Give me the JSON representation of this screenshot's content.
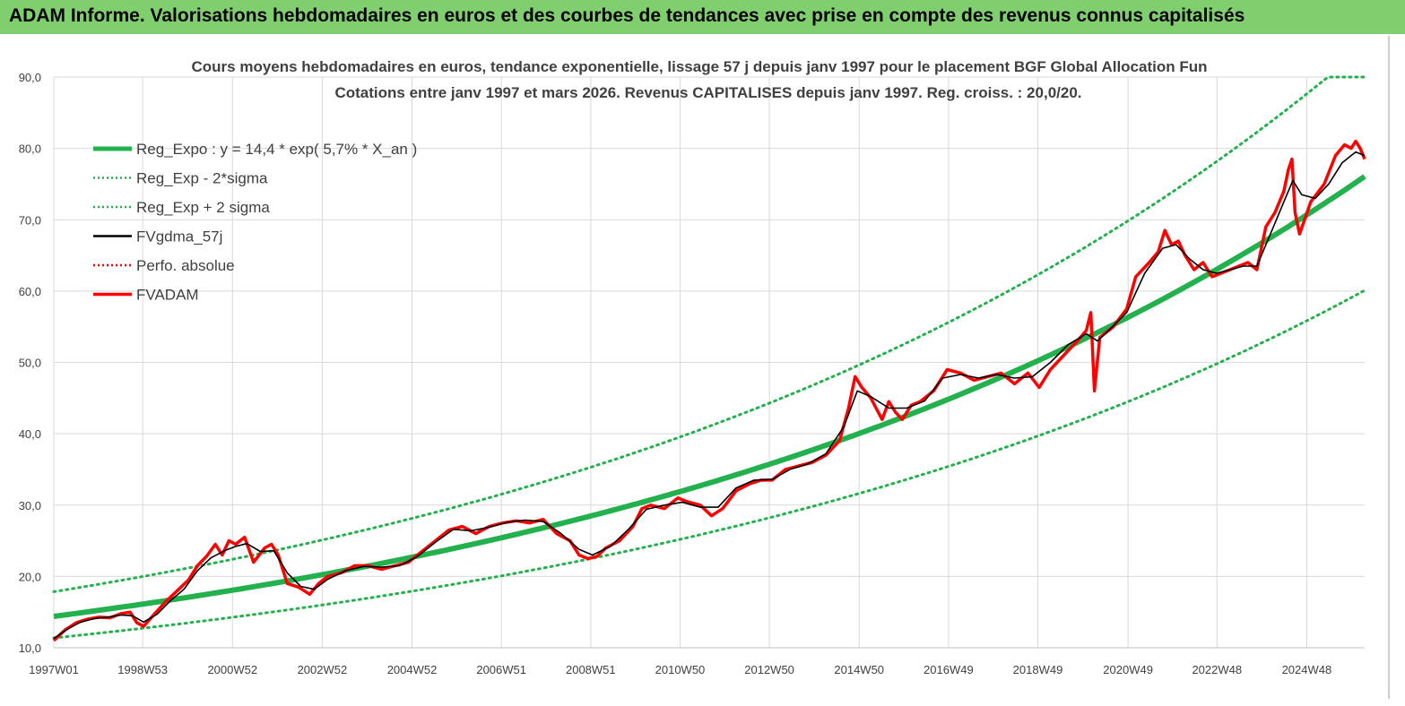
{
  "header": {
    "title": "ADAM Informe. Valorisations hebdomadaires en euros et des courbes de tendances avec prise en compte des revenus connus capitalisés"
  },
  "colors": {
    "header_bg": "#7fcf6f",
    "reg_green": "#22b14c",
    "series_red": "#ff0000",
    "series_black": "#000000",
    "grid": "#d9d9d9"
  },
  "chart_data": {
    "type": "line",
    "title": "Cours moyens hebdomadaires en euros, tendance exponentielle, lissage 57 j depuis janv 1997  pour le placement BGF Global Allocation Fun",
    "subtitle": "Cotations entre janv 1997 et mars 2026. Revenus CAPITALISES  depuis janv 1997. Reg. croiss. : 20,0/20.",
    "ylim": [
      10,
      90
    ],
    "yticks": [
      "10,0",
      "20,0",
      "30,0",
      "40,0",
      "50,0",
      "60,0",
      "70,0",
      "80,0",
      "90,0"
    ],
    "xlim": [
      1997.0,
      2026.2
    ],
    "xticks": [
      {
        "label": "1997W01",
        "x": 1997.0
      },
      {
        "label": "1998W53",
        "x": 1998.98
      },
      {
        "label": "2000W52",
        "x": 2000.98
      },
      {
        "label": "2002W52",
        "x": 2002.98
      },
      {
        "label": "2004W52",
        "x": 2004.98
      },
      {
        "label": "2006W51",
        "x": 2006.97
      },
      {
        "label": "2008W51",
        "x": 2008.96
      },
      {
        "label": "2010W50",
        "x": 2010.95
      },
      {
        "label": "2012W50",
        "x": 2012.94
      },
      {
        "label": "2014W50",
        "x": 2014.94
      },
      {
        "label": "2016W49",
        "x": 2016.93
      },
      {
        "label": "2018W49",
        "x": 2018.92
      },
      {
        "label": "2020W49",
        "x": 2020.93
      },
      {
        "label": "2022W48",
        "x": 2022.91
      },
      {
        "label": "2024W48",
        "x": 2024.91
      }
    ],
    "legend_position": "top-left",
    "legend": [
      {
        "label": "Reg_Expo : y = 14,4 * exp( 5,7% *  X_an )",
        "color": "#22b14c",
        "style": "solid-thick"
      },
      {
        "label": "Reg_Exp - 2*sigma",
        "color": "#22b14c",
        "style": "dotted"
      },
      {
        "label": "Reg_Exp + 2 sigma",
        "color": "#22b14c",
        "style": "dotted"
      },
      {
        "label": "FVgdma_57j",
        "color": "#000000",
        "style": "solid-thin"
      },
      {
        "label": "Perfo. absolue",
        "color": "#ff0000",
        "style": "dotted"
      },
      {
        "label": "FVADAM",
        "color": "#ff0000",
        "style": "solid"
      }
    ],
    "regression": {
      "a": 14.4,
      "rate": 0.057,
      "x0": 1997.0,
      "lower_factor": 0.79,
      "upper_factor": 1.24,
      "cap": 90
    },
    "series": [
      {
        "name": "FVADAM",
        "x": [
          1997.0,
          1997.25,
          1997.5,
          1997.75,
          1998.0,
          1998.25,
          1998.5,
          1998.7,
          1998.85,
          1999.0,
          1999.25,
          1999.5,
          1999.75,
          2000.0,
          2000.2,
          2000.4,
          2000.6,
          2000.75,
          2000.9,
          2001.05,
          2001.25,
          2001.45,
          2001.7,
          2001.85,
          2002.0,
          2002.2,
          2002.45,
          2002.7,
          2002.9,
          2003.1,
          2003.4,
          2003.7,
          2004.0,
          2004.3,
          2004.6,
          2004.9,
          2005.2,
          2005.5,
          2005.8,
          2006.1,
          2006.4,
          2006.7,
          2007.0,
          2007.3,
          2007.6,
          2007.9,
          2008.2,
          2008.5,
          2008.7,
          2008.9,
          2009.1,
          2009.3,
          2009.6,
          2009.9,
          2010.1,
          2010.3,
          2010.6,
          2010.9,
          2011.1,
          2011.4,
          2011.65,
          2011.9,
          2012.2,
          2012.5,
          2012.75,
          2013.0,
          2013.3,
          2013.6,
          2013.9,
          2014.2,
          2014.5,
          2014.7,
          2014.85,
          2015.0,
          2015.2,
          2015.45,
          2015.6,
          2015.75,
          2015.9,
          2016.1,
          2016.3,
          2016.6,
          2016.9,
          2017.2,
          2017.5,
          2017.8,
          2018.1,
          2018.4,
          2018.7,
          2018.95,
          2019.2,
          2019.5,
          2019.8,
          2020.0,
          2020.1,
          2020.18,
          2020.3,
          2020.6,
          2020.9,
          2021.1,
          2021.4,
          2021.6,
          2021.75,
          2021.9,
          2022.05,
          2022.2,
          2022.4,
          2022.6,
          2022.8,
          2023.0,
          2023.2,
          2023.4,
          2023.6,
          2023.8,
          2024.0,
          2024.2,
          2024.4,
          2024.5,
          2024.58,
          2024.65,
          2024.75,
          2025.0,
          2025.3,
          2025.55,
          2025.75,
          2025.9,
          2026.0,
          2026.1,
          2026.2
        ],
        "values": [
          11.0,
          12.5,
          13.5,
          14.0,
          14.3,
          14.2,
          14.8,
          15.0,
          13.5,
          13.0,
          14.8,
          16.5,
          18.0,
          19.5,
          21.5,
          22.8,
          24.5,
          23.0,
          25.0,
          24.5,
          25.5,
          22.0,
          24.0,
          24.5,
          23.0,
          19.0,
          18.5,
          17.5,
          19.0,
          20.0,
          20.5,
          21.5,
          21.5,
          21.0,
          21.5,
          22.0,
          23.5,
          25.0,
          26.5,
          27.0,
          26.0,
          27.0,
          27.5,
          27.8,
          27.5,
          28.0,
          26.0,
          25.0,
          23.0,
          22.5,
          22.8,
          24.0,
          25.0,
          27.0,
          29.5,
          30.0,
          29.5,
          31.0,
          30.5,
          30.0,
          28.5,
          29.5,
          32.0,
          33.0,
          33.5,
          33.5,
          35.0,
          35.5,
          36.0,
          37.0,
          39.0,
          43.5,
          48.0,
          46.5,
          45.0,
          42.0,
          44.5,
          43.0,
          42.0,
          44.0,
          44.5,
          46.0,
          49.0,
          48.5,
          47.5,
          48.0,
          48.5,
          47.0,
          48.5,
          46.5,
          49.0,
          51.0,
          53.0,
          54.5,
          57.0,
          46.0,
          53.5,
          55.0,
          57.5,
          62.0,
          64.0,
          65.5,
          68.5,
          66.5,
          67.0,
          65.0,
          63.0,
          64.0,
          62.0,
          62.5,
          63.0,
          63.5,
          64.0,
          63.0,
          69.0,
          71.0,
          74.0,
          77.0,
          78.5,
          71.0,
          68.0,
          72.5,
          75.0,
          79.0,
          80.5,
          80.0,
          81.0,
          80.0,
          78.5
        ]
      },
      {
        "name": "FVgdma_57j",
        "x": [
          1997.0,
          1997.3,
          1997.6,
          1997.9,
          1998.2,
          1998.5,
          1998.75,
          1999.0,
          1999.3,
          1999.6,
          1999.9,
          2000.2,
          2000.5,
          2000.8,
          2001.05,
          2001.3,
          2001.6,
          2001.9,
          2002.2,
          2002.5,
          2002.8,
          2003.1,
          2003.5,
          2003.9,
          2004.3,
          2004.7,
          2005.1,
          2005.5,
          2005.9,
          2006.3,
          2006.7,
          2007.1,
          2007.5,
          2007.9,
          2008.3,
          2008.7,
          2009.0,
          2009.4,
          2009.8,
          2010.2,
          2010.6,
          2011.0,
          2011.4,
          2011.8,
          2012.2,
          2012.6,
          2013.0,
          2013.4,
          2013.8,
          2014.2,
          2014.6,
          2014.9,
          2015.2,
          2015.6,
          2016.0,
          2016.4,
          2016.8,
          2017.2,
          2017.6,
          2018.0,
          2018.4,
          2018.8,
          2019.2,
          2019.6,
          2020.0,
          2020.25,
          2020.5,
          2020.9,
          2021.3,
          2021.7,
          2022.0,
          2022.3,
          2022.6,
          2022.9,
          2023.2,
          2023.5,
          2023.8,
          2024.1,
          2024.4,
          2024.6,
          2024.8,
          2025.1,
          2025.4,
          2025.7,
          2026.0,
          2026.2
        ],
        "values": [
          11.3,
          12.6,
          13.6,
          14.1,
          14.3,
          14.6,
          14.5,
          13.6,
          14.7,
          16.6,
          18.2,
          20.8,
          22.6,
          23.6,
          24.2,
          24.6,
          23.5,
          23.6,
          20.5,
          18.6,
          18.2,
          19.6,
          20.8,
          21.4,
          21.3,
          21.5,
          22.8,
          24.8,
          26.6,
          26.4,
          26.9,
          27.6,
          27.9,
          27.7,
          26.0,
          23.8,
          23.0,
          24.2,
          26.6,
          29.4,
          30.0,
          30.4,
          29.7,
          29.7,
          32.4,
          33.5,
          33.6,
          35.0,
          35.8,
          37.2,
          41.0,
          46.0,
          45.2,
          43.6,
          43.6,
          44.6,
          47.8,
          48.3,
          47.8,
          48.3,
          47.8,
          48.0,
          50.0,
          52.5,
          54.0,
          53.0,
          54.5,
          57.0,
          62.5,
          66.0,
          66.5,
          64.5,
          63.0,
          62.5,
          63.0,
          63.5,
          63.5,
          68.0,
          72.5,
          75.5,
          73.5,
          73.0,
          75.0,
          78.0,
          79.5,
          79.0
        ]
      }
    ]
  }
}
